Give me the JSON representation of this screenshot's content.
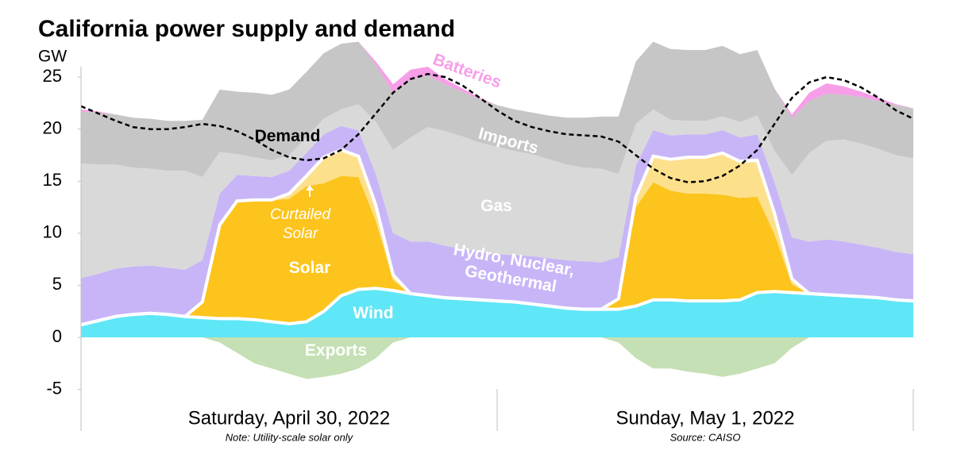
{
  "chart_data": {
    "type": "stacked-area",
    "title": "California power supply and demand",
    "y_unit": "GW",
    "categories": [
      null,
      null,
      null,
      null,
      null,
      null,
      null,
      null,
      null,
      null,
      null,
      null,
      "Saturday, April 30, 2022",
      null,
      null,
      null,
      null,
      null,
      null,
      null,
      null,
      null,
      null,
      null,
      null,
      null,
      null,
      null,
      null,
      null,
      null,
      null,
      null,
      null,
      null,
      null,
      "Sunday, May 1, 2022",
      null,
      null,
      null,
      null,
      null,
      null,
      null,
      null,
      null,
      null,
      null,
      null
    ],
    "ylim": [
      -9,
      26
    ],
    "yticks": [
      -5,
      0,
      5,
      10,
      15,
      20,
      25
    ],
    "series": [
      {
        "name": "Wind",
        "color": "#5fe6f7",
        "values": [
          1.2,
          1.6,
          2.0,
          2.2,
          2.3,
          2.2,
          2.0,
          1.9,
          1.8,
          1.8,
          1.7,
          1.5,
          1.3,
          1.5,
          2.5,
          4.0,
          4.6,
          4.7,
          4.5,
          4.2,
          4.0,
          3.8,
          3.7,
          3.6,
          3.5,
          3.4,
          3.2,
          3.0,
          2.8,
          2.7,
          2.7,
          2.7,
          3.0,
          3.6,
          3.6,
          3.5,
          3.5,
          3.5,
          3.6,
          4.3,
          4.4,
          4.3,
          4.2,
          4.1,
          4.0,
          3.9,
          3.8,
          3.6,
          3.5
        ]
      },
      {
        "name": "Solar",
        "color": "#fcc41c",
        "values": [
          0,
          0,
          0,
          0,
          0,
          0,
          0,
          1.5,
          9,
          11.3,
          11.5,
          11.7,
          12,
          13,
          12.3,
          11.5,
          10.8,
          6.5,
          1,
          0,
          0,
          0,
          0,
          0,
          0,
          0,
          0,
          0,
          0,
          0,
          0,
          1,
          9.5,
          11.3,
          10.5,
          10.3,
          10.3,
          10.2,
          9.8,
          9.2,
          5.5,
          0.8,
          0,
          0,
          0,
          0,
          0,
          0,
          0
        ]
      },
      {
        "name": "Curtailed Solar",
        "color": "#fde08c",
        "values": [
          0,
          0,
          0,
          0,
          0,
          0,
          0,
          0,
          0,
          0,
          0,
          0,
          0.5,
          1,
          2.5,
          2.5,
          2,
          1.5,
          0.5,
          0,
          0,
          0,
          0,
          0,
          0,
          0,
          0,
          0,
          0,
          0,
          0,
          0,
          1,
          2.5,
          3,
          3.5,
          3.5,
          4,
          3.5,
          3.5,
          2,
          0.5,
          0,
          0,
          0,
          0,
          0,
          0,
          0
        ]
      },
      {
        "name": "Hydro, Nuclear, Geothermal",
        "color": "#c8b5f7",
        "values": [
          4.5,
          4.5,
          4.6,
          4.6,
          4.6,
          4.5,
          4.5,
          4.0,
          3.0,
          2.5,
          2.3,
          2.2,
          2.2,
          2.2,
          2.2,
          2.3,
          2.5,
          3.0,
          4.0,
          5.0,
          5.2,
          5.0,
          4.8,
          4.6,
          4.5,
          4.5,
          4.6,
          4.6,
          4.6,
          4.6,
          4.5,
          4.0,
          3.0,
          2.5,
          2.3,
          2.2,
          2.2,
          2.2,
          2.3,
          2.5,
          3.0,
          4.0,
          5.0,
          5.3,
          5.2,
          5.0,
          4.8,
          4.6,
          4.5
        ]
      },
      {
        "name": "Gas",
        "color": "#d9d9d9",
        "values": [
          11,
          10.5,
          10,
          9.5,
          9.3,
          9.3,
          9.5,
          8,
          4,
          2,
          1.8,
          1.6,
          1.5,
          1.5,
          1.5,
          1.6,
          2.5,
          5,
          8,
          10,
          11,
          11,
          10.8,
          10.5,
          10.3,
          10,
          9.8,
          9.5,
          9.2,
          9,
          9,
          8,
          4,
          2,
          1.5,
          1.3,
          1.3,
          1.3,
          1.5,
          1.8,
          3,
          6,
          8.5,
          9.5,
          9.8,
          9.7,
          9.5,
          9.3,
          9.2
        ]
      },
      {
        "name": "Imports",
        "color": "#c6c6c6",
        "values": [
          5,
          5,
          4.8,
          4.8,
          4.8,
          4.8,
          4.8,
          5.5,
          6,
          6,
          6.2,
          6.3,
          6.3,
          6.3,
          6.3,
          6.3,
          6,
          5.5,
          5.5,
          5.5,
          5,
          4.5,
          4.3,
          4.2,
          4,
          4,
          4,
          4.2,
          4.5,
          4.8,
          5,
          5.5,
          6,
          6.5,
          6.8,
          6.8,
          6.8,
          6.8,
          6.5,
          6.3,
          6,
          5.5,
          5,
          4.5,
          4.3,
          4.5,
          4.6,
          4.8,
          4.8
        ]
      },
      {
        "name": "Batteries",
        "color": "#f79ee8",
        "values": [
          0.2,
          0.1,
          0,
          0,
          0,
          0,
          0,
          0,
          0,
          0,
          0,
          0,
          0,
          0,
          0,
          0,
          0,
          0.3,
          0.8,
          1.0,
          0.8,
          0.5,
          0.3,
          0.1,
          0,
          0,
          0,
          0,
          0,
          0,
          0,
          0,
          0,
          0,
          0,
          0,
          0,
          0,
          0,
          0,
          0,
          0.3,
          0.8,
          1.0,
          0.8,
          0.5,
          0.3,
          0.1,
          0
        ]
      },
      {
        "name": "Exports",
        "color": "#c5e0b4",
        "values": [
          0,
          0,
          0,
          0,
          0,
          0,
          0,
          0,
          -0.5,
          -1.5,
          -2.5,
          -3,
          -3.5,
          -4,
          -3.8,
          -3.5,
          -3,
          -2,
          -0.5,
          0,
          0,
          0,
          0,
          0,
          0,
          0,
          0,
          0,
          0,
          0,
          0,
          -0.5,
          -2,
          -3,
          -3,
          -3.3,
          -3.5,
          -3.8,
          -3.5,
          -3,
          -2.5,
          -1,
          0,
          0,
          0,
          0,
          0,
          0,
          0
        ]
      }
    ],
    "demand": {
      "name": "Demand",
      "values": [
        22.2,
        21.5,
        20.8,
        20.2,
        20.0,
        20.0,
        20.2,
        20.5,
        20.3,
        19.8,
        19.0,
        18.0,
        17.3,
        17.0,
        17.2,
        18.0,
        19.5,
        21.5,
        23.5,
        24.8,
        25.3,
        25.0,
        24.2,
        23.0,
        21.8,
        20.8,
        20.2,
        19.8,
        19.5,
        19.4,
        19.3,
        18.8,
        17.5,
        16.2,
        15.3,
        14.9,
        15.0,
        15.5,
        16.5,
        18.0,
        20.5,
        23.0,
        24.5,
        25.0,
        24.7,
        24.0,
        23.0,
        21.8,
        21.0
      ]
    },
    "notes": [
      "Note: Utility-scale solar only",
      "Source: CAISO"
    ]
  }
}
